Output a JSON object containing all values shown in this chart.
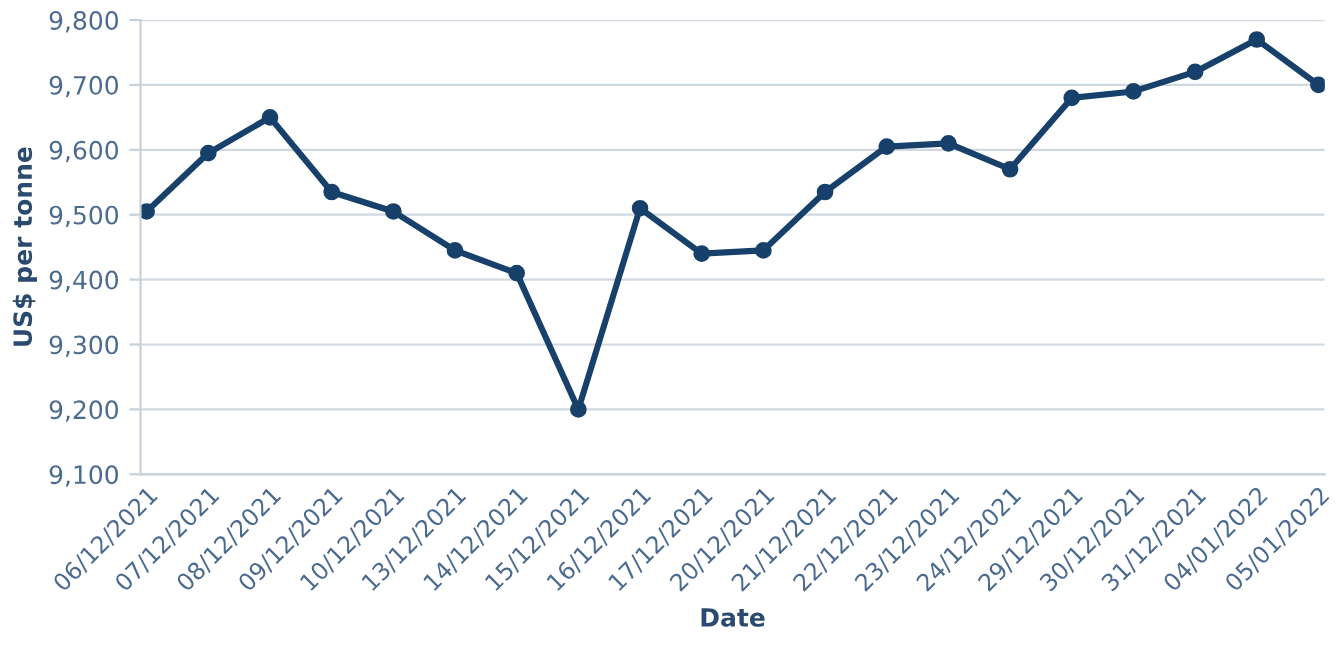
{
  "chart_data": {
    "type": "line",
    "xlabel": "Date",
    "ylabel": "US$ per tonne",
    "categories": [
      "06/12/2021",
      "07/12/2021",
      "08/12/2021",
      "09/12/2021",
      "10/12/2021",
      "13/12/2021",
      "14/12/2021",
      "15/12/2021",
      "16/12/2021",
      "17/12/2021",
      "20/12/2021",
      "21/12/2021",
      "22/12/2021",
      "23/12/2021",
      "24/12/2021",
      "29/12/2021",
      "30/12/2021",
      "31/12/2021",
      "04/01/2022",
      "05/01/2022"
    ],
    "series": [
      {
        "color": "#17406a",
        "values": [
          9505,
          9595,
          9650,
          9535,
          9505,
          9445,
          9410,
          9200,
          9510,
          9440,
          9445,
          9535,
          9605,
          9610,
          9570,
          9680,
          9690,
          9720,
          9770,
          9700
        ]
      }
    ],
    "ylim": [
      9100,
      9800
    ],
    "yticks": [
      {
        "value": 9100,
        "label": "9,100"
      },
      {
        "value": 9200,
        "label": "9,200"
      },
      {
        "value": 9300,
        "label": "9,300"
      },
      {
        "value": 9400,
        "label": "9,400"
      },
      {
        "value": 9500,
        "label": "9,500"
      },
      {
        "value": 9600,
        "label": "9,600"
      },
      {
        "value": 9700,
        "label": "9,700"
      },
      {
        "value": 9800,
        "label": "9,800"
      }
    ],
    "grid": "y",
    "marker": "circle",
    "line_style": "solid"
  }
}
